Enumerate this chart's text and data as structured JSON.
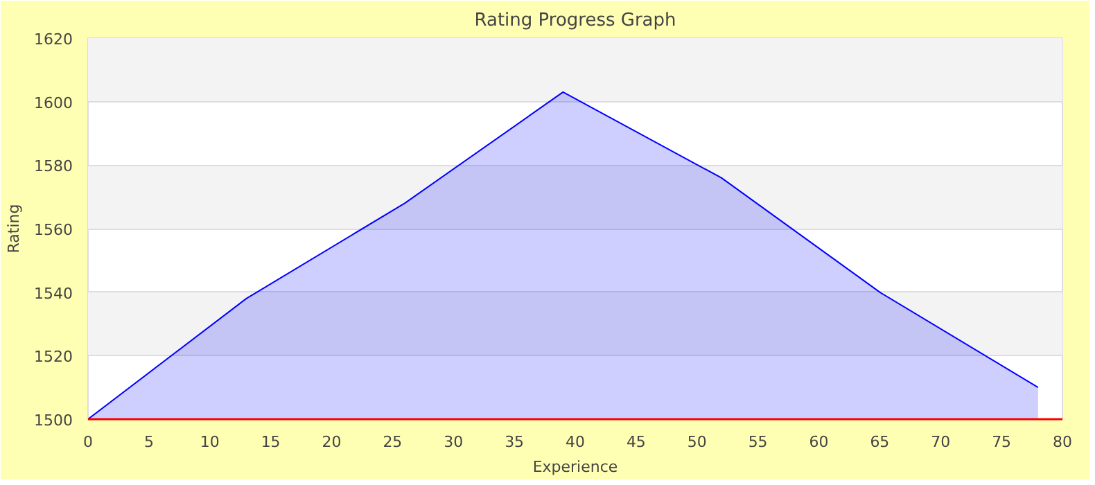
{
  "chart_data": {
    "type": "area",
    "title": "Rating Progress Graph",
    "xlabel": "Experience",
    "ylabel": "Rating",
    "x": [
      0,
      13,
      26,
      39,
      52,
      65,
      78
    ],
    "series": [
      {
        "color": "#0000ff",
        "values": [
          1500,
          1538,
          1568,
          1603,
          1576,
          1540,
          1510
        ]
      }
    ],
    "xlim": [
      0,
      80
    ],
    "xticks": [
      0,
      5,
      10,
      15,
      20,
      25,
      30,
      35,
      40,
      45,
      50,
      55,
      60,
      65,
      70,
      75,
      80
    ],
    "ylim": [
      1500,
      1620
    ],
    "yticks": [
      1500,
      1520,
      1540,
      1560,
      1580,
      1600,
      1620
    ],
    "grid": "y"
  }
}
